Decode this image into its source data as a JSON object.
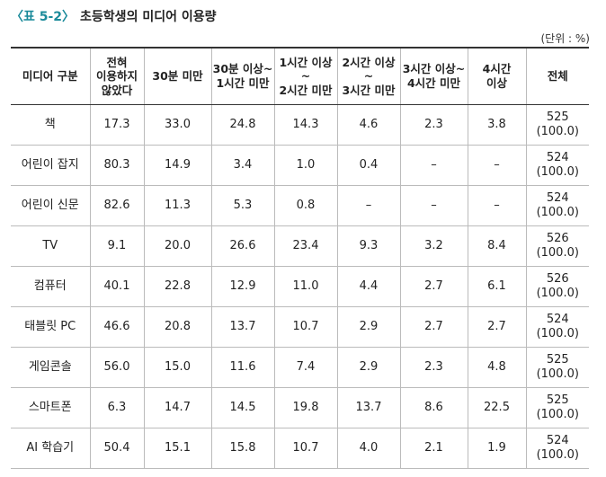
{
  "header": {
    "label": "〈표 5-2〉",
    "title": "초등학생의 미디어 이용량",
    "unit": "(단위 : %)"
  },
  "table": {
    "columns": [
      "미디어 구분",
      "전혀\n이용하지\n않았다",
      "30분 미만",
      "30분 이상~\n1시간 미만",
      "1시간 이상~\n2시간 미만",
      "2시간 이상~\n3시간 미만",
      "3시간 이상~\n4시간 미만",
      "4시간\n이상",
      "전체"
    ],
    "rows": [
      [
        "책",
        "17.3",
        "33.0",
        "24.8",
        "14.3",
        "4.6",
        "2.3",
        "3.8",
        "525\n(100.0)"
      ],
      [
        "어린이 잡지",
        "80.3",
        "14.9",
        "3.4",
        "1.0",
        "0.4",
        "–",
        "–",
        "524\n(100.0)"
      ],
      [
        "어린이 신문",
        "82.6",
        "11.3",
        "5.3",
        "0.8",
        "–",
        "–",
        "–",
        "524\n(100.0)"
      ],
      [
        "TV",
        "9.1",
        "20.0",
        "26.6",
        "23.4",
        "9.3",
        "3.2",
        "8.4",
        "526\n(100.0)"
      ],
      [
        "컴퓨터",
        "40.1",
        "22.8",
        "12.9",
        "11.0",
        "4.4",
        "2.7",
        "6.1",
        "526\n(100.0)"
      ],
      [
        "태블릿 PC",
        "46.6",
        "20.8",
        "13.7",
        "10.7",
        "2.9",
        "2.7",
        "2.7",
        "524\n(100.0)"
      ],
      [
        "게임콘솔",
        "56.0",
        "15.0",
        "11.6",
        "7.4",
        "2.9",
        "2.3",
        "4.8",
        "525\n(100.0)"
      ],
      [
        "스마트폰",
        "6.3",
        "14.7",
        "14.5",
        "19.8",
        "13.7",
        "8.6",
        "22.5",
        "525\n(100.0)"
      ],
      [
        "AI 학습기",
        "50.4",
        "15.1",
        "15.8",
        "10.7",
        "4.0",
        "2.1",
        "1.9",
        "524\n(100.0)"
      ]
    ]
  }
}
